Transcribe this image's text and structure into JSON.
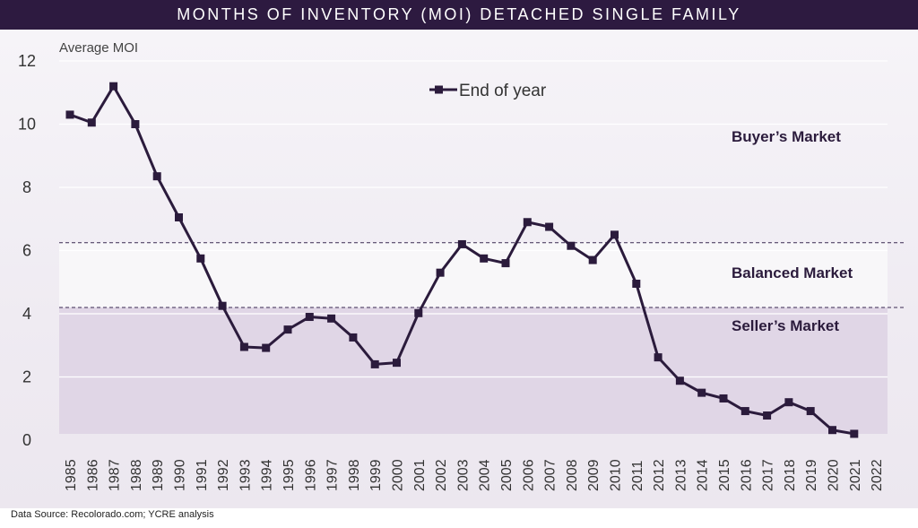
{
  "title": "MONTHS OF INVENTORY (MOI) DETACHED SINGLE FAMILY",
  "source": "Data Source: Recolorado.com; YCRE analysis",
  "colors": {
    "title_bg": "#2d1a40",
    "line": "#2b1b3c",
    "seller_zone": "#e0d6e6",
    "balanced_zone": "#f8f7f9",
    "threshold_line": "#3a2a52"
  },
  "chart_data": {
    "type": "line",
    "ylabel": "Average MOI",
    "xlabel": "",
    "ylim": [
      0,
      12
    ],
    "yticks": [
      0,
      2,
      4,
      6,
      8,
      10,
      12
    ],
    "grid": true,
    "legend": {
      "position": "top-center",
      "entries": [
        "End of year"
      ]
    },
    "categories": [
      "1985",
      "1986",
      "1987",
      "1988",
      "1989",
      "1990",
      "1991",
      "1992",
      "1993",
      "1994",
      "1995",
      "1996",
      "1997",
      "1998",
      "1999",
      "2000",
      "2001",
      "2002",
      "2003",
      "2004",
      "2005",
      "2006",
      "2007",
      "2008",
      "2009",
      "2010",
      "2011",
      "2012",
      "2013",
      "2014",
      "2015",
      "2016",
      "2017",
      "2018",
      "2019",
      "2020",
      "2021",
      "2022"
    ],
    "series": [
      {
        "name": "End of year",
        "values": [
          10.3,
          10.05,
          11.2,
          10.0,
          8.35,
          7.05,
          5.75,
          4.25,
          2.95,
          2.92,
          3.5,
          3.9,
          3.85,
          3.25,
          2.4,
          2.45,
          4.02,
          5.3,
          6.2,
          5.75,
          5.6,
          6.9,
          6.75,
          6.15,
          5.7,
          6.5,
          4.95,
          2.62,
          1.88,
          1.5,
          1.32,
          0.92,
          0.78,
          1.2,
          0.92,
          0.32,
          0.2,
          null
        ]
      }
    ],
    "zones": [
      {
        "label": "Buyer’s Market",
        "from": 6.25,
        "to": 12
      },
      {
        "label": "Balanced Market",
        "from": 4.2,
        "to": 6.25
      },
      {
        "label": "Seller’s Market",
        "from": 0,
        "to": 4.2
      }
    ],
    "thresholds": [
      6.25,
      4.2
    ]
  }
}
